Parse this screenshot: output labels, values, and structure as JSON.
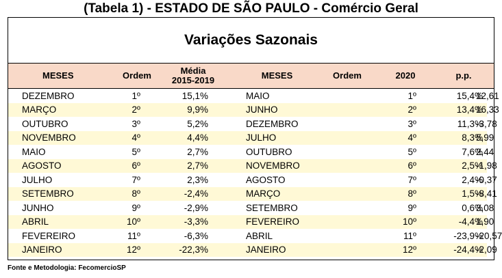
{
  "title": "(Tabela 1) - ESTADO DE SÃO PAULO - Comércio Geral",
  "subtitle": "Variações Sazonais",
  "headers": {
    "meses_left": "MESES",
    "ordem_left": "Ordem",
    "media_line1": "Média",
    "media_line2": "2015-2019",
    "meses_right": "MESES",
    "ordem_right": "Ordem",
    "year": "2020",
    "pp": "p.p."
  },
  "rows": [
    {
      "mes_l": "DEZEMBRO",
      "ord_l": "1º",
      "media": "15,1%",
      "mes_r": "MAIO",
      "ord_r": "1º",
      "v2020": "15,4%",
      "pp": "12,61"
    },
    {
      "mes_l": "MARÇO",
      "ord_l": "2º",
      "media": "9,9%",
      "mes_r": "JUNHO",
      "ord_r": "2º",
      "v2020": "13,4%",
      "pp": "16,33"
    },
    {
      "mes_l": "OUTUBRO",
      "ord_l": "3º",
      "media": "5,2%",
      "mes_r": "DEZEMBRO",
      "ord_r": "3º",
      "v2020": "11,3%",
      "pp": "-3,78"
    },
    {
      "mes_l": "NOVEMBRO",
      "ord_l": "4º",
      "media": "4,4%",
      "mes_r": "JULHO",
      "ord_r": "4º",
      "v2020": "8,3%",
      "pp": "5,99"
    },
    {
      "mes_l": "MAIO",
      "ord_l": "5º",
      "media": "2,7%",
      "mes_r": "OUTUBRO",
      "ord_r": "5º",
      "v2020": "7,6%",
      "pp": "2,44"
    },
    {
      "mes_l": "AGOSTO",
      "ord_l": "6º",
      "media": "2,7%",
      "mes_r": "NOVEMBRO",
      "ord_r": "6º",
      "v2020": "2,5%",
      "pp": "-1,98"
    },
    {
      "mes_l": "JULHO",
      "ord_l": "7º",
      "media": "2,3%",
      "mes_r": "AGOSTO",
      "ord_r": "7º",
      "v2020": "2,4%",
      "pp": "-0,37"
    },
    {
      "mes_l": "SETEMBRO",
      "ord_l": "8º",
      "media": "-2,4%",
      "mes_r": "MARÇO",
      "ord_r": "8º",
      "v2020": "1,5%",
      "pp": "-8,41"
    },
    {
      "mes_l": "JUNHO",
      "ord_l": "9º",
      "media": "-2,9%",
      "mes_r": "SETEMBRO",
      "ord_r": "9º",
      "v2020": "0,6%",
      "pp": "3,08"
    },
    {
      "mes_l": "ABRIL",
      "ord_l": "10º",
      "media": "-3,3%",
      "mes_r": "FEVEREIRO",
      "ord_r": "10º",
      "v2020": "-4,4%",
      "pp": "1,90"
    },
    {
      "mes_l": "FEVEREIRO",
      "ord_l": "11º",
      "media": "-6,3%",
      "mes_r": "ABRIL",
      "ord_r": "11º",
      "v2020": "-23,9%",
      "pp": "-20,57"
    },
    {
      "mes_l": "JANEIRO",
      "ord_l": "12º",
      "media": "-22,3%",
      "mes_r": "JANEIRO",
      "ord_r": "12º",
      "v2020": "-24,4%",
      "pp": "-2,09"
    }
  ],
  "footer": "Fonte e Metodologia: FecomercioSP",
  "colors": {
    "header_bg": "#f9d9c8",
    "stripe_bg": "#fff9d6",
    "row_bg": "#ffffff"
  }
}
